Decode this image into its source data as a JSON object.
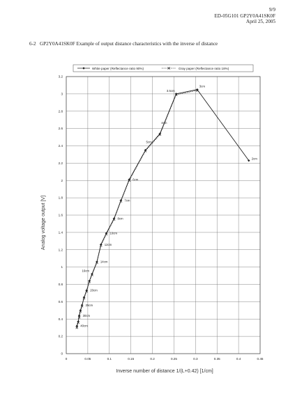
{
  "header": {
    "page": "9/9",
    "doc_id": "ED-05G101  GP2Y0A41SK0F",
    "date": "April 25, 2005"
  },
  "caption": {
    "number": "6-2",
    "text": "GP2Y0A41SK0F Example of output distance characteristics with the inverse of distance"
  },
  "chart_data": {
    "type": "line",
    "title": "",
    "xlabel": "Inverse number of distance   1/(L+0.42)  [1/cm]",
    "ylabel": "Analog voltage output [V]",
    "xlim": [
      0,
      0.45
    ],
    "ylim": [
      0,
      3.2
    ],
    "xticks": [
      "0",
      "0.05",
      "0.1",
      "0.15",
      "0.2",
      "0.25",
      "0.3",
      "0.35",
      "0.4",
      "0.45"
    ],
    "yticks": [
      "0",
      "0.2",
      "0.4",
      "0.6",
      "0.8",
      "1",
      "1.2",
      "1.4",
      "1.6",
      "1.8",
      "2",
      "2.2",
      "2.4",
      "2.6",
      "2.8",
      "3",
      "3.2"
    ],
    "grid": true,
    "legend_position": "top",
    "series": [
      {
        "name": "White paper (Reflectance ratio 90%)",
        "color": "#222222",
        "marker": "diamond",
        "dash": "solid",
        "x": [
          0.0247,
          0.0278,
          0.0301,
          0.033,
          0.0366,
          0.0413,
          0.0473,
          0.0537,
          0.0599,
          0.0711,
          0.0805,
          0.093,
          0.1109,
          0.1269,
          0.1461,
          0.1838,
          0.2174,
          0.2551,
          0.304,
          0.4237
        ],
        "y": [
          0.32,
          0.37,
          0.44,
          0.5,
          0.56,
          0.65,
          0.73,
          0.84,
          0.92,
          1.06,
          1.26,
          1.39,
          1.56,
          1.77,
          2.01,
          2.35,
          2.54,
          3.0,
          3.05,
          2.23
        ]
      },
      {
        "name": "Gray paper (Reflectance ratio 18%)",
        "color": "#222222",
        "marker": "x",
        "dash": "dotted",
        "x": [
          0.0247,
          0.0278,
          0.0301,
          0.033,
          0.0366,
          0.0413,
          0.0473,
          0.0537,
          0.0599,
          0.0711,
          0.0805,
          0.093,
          0.1109,
          0.1269,
          0.1461,
          0.1838,
          0.2174,
          0.2551,
          0.304
        ],
        "y": [
          0.3,
          0.36,
          0.42,
          0.49,
          0.55,
          0.64,
          0.72,
          0.83,
          0.91,
          1.05,
          1.25,
          1.38,
          1.55,
          1.76,
          2.0,
          2.34,
          2.53,
          2.99,
          3.04
        ]
      }
    ],
    "annotations": [
      {
        "text": "40cm",
        "x": 0.0247,
        "y": 0.32
      },
      {
        "text": "30cm",
        "x": 0.0301,
        "y": 0.44
      },
      {
        "text": "25cm",
        "x": 0.0366,
        "y": 0.56
      },
      {
        "text": "20cm",
        "x": 0.0473,
        "y": 0.73
      },
      {
        "text": "16cm",
        "x": 0.0599,
        "y": 0.92
      },
      {
        "text": "14cm",
        "x": 0.0711,
        "y": 1.06
      },
      {
        "text": "12cm",
        "x": 0.0805,
        "y": 1.26
      },
      {
        "text": "10cm",
        "x": 0.093,
        "y": 1.39
      },
      {
        "text": "8cm",
        "x": 0.1109,
        "y": 1.56
      },
      {
        "text": "7cm",
        "x": 0.1269,
        "y": 1.77
      },
      {
        "text": "6cm",
        "x": 0.1461,
        "y": 2.01
      },
      {
        "text": "5cm",
        "x": 0.1838,
        "y": 2.35
      },
      {
        "text": "4cm",
        "x": 0.2174,
        "y": 2.54
      },
      {
        "text": "3.5cm",
        "x": 0.2551,
        "y": 3.0
      },
      {
        "text": "3cm",
        "x": 0.304,
        "y": 3.05
      },
      {
        "text": "2cm",
        "x": 0.4237,
        "y": 2.23
      }
    ]
  }
}
